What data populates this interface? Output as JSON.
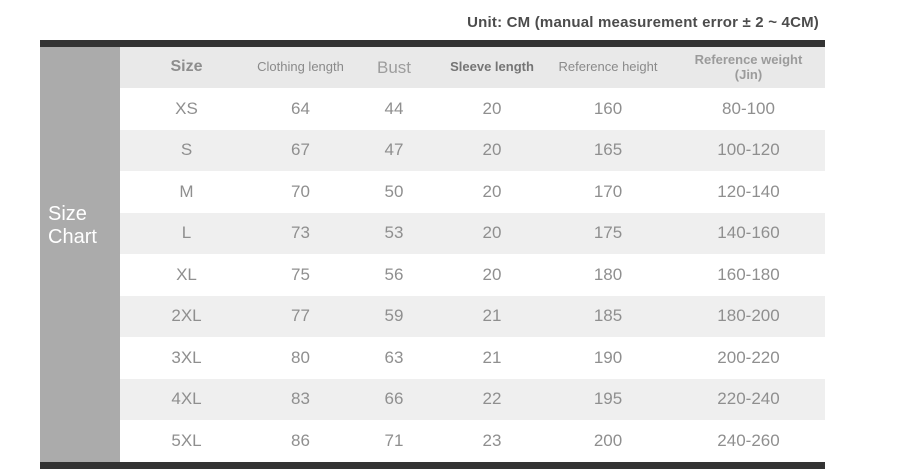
{
  "unit_note": "Unit: CM (manual measurement error ± 2 ~ 4CM)",
  "sidebar": {
    "line1": "Size",
    "line2": "Chart"
  },
  "chart_data": {
    "type": "table",
    "title": "Size Chart",
    "columns": [
      {
        "label": "Size"
      },
      {
        "label": "Clothing length"
      },
      {
        "label": "Bust"
      },
      {
        "label": "Sleeve length"
      },
      {
        "label": "Reference height"
      },
      {
        "label": "Reference weight",
        "sublabel": "(Jin)"
      }
    ],
    "rows": [
      [
        "XS",
        64,
        44,
        20,
        160,
        "80-100"
      ],
      [
        "S",
        67,
        47,
        20,
        165,
        "100-120"
      ],
      [
        "M",
        70,
        50,
        20,
        170,
        "120-140"
      ],
      [
        "L",
        73,
        53,
        20,
        175,
        "140-160"
      ],
      [
        "XL",
        75,
        56,
        20,
        180,
        "160-180"
      ],
      [
        "2XL",
        77,
        59,
        21,
        185,
        "180-200"
      ],
      [
        "3XL",
        80,
        63,
        21,
        190,
        "200-220"
      ],
      [
        "4XL",
        83,
        66,
        22,
        195,
        "220-240"
      ],
      [
        "5XL",
        86,
        71,
        23,
        200,
        "240-260"
      ]
    ]
  },
  "colors": {
    "sidebar_bg": "#ababab",
    "border_bar": "#333333",
    "header_bg": "#e9e9e9",
    "stripe_bg": "#efefef",
    "cell_text": "#8f8f8f",
    "unit_note_text": "#4c4c4c",
    "sidebar_text": "#ffffff"
  }
}
